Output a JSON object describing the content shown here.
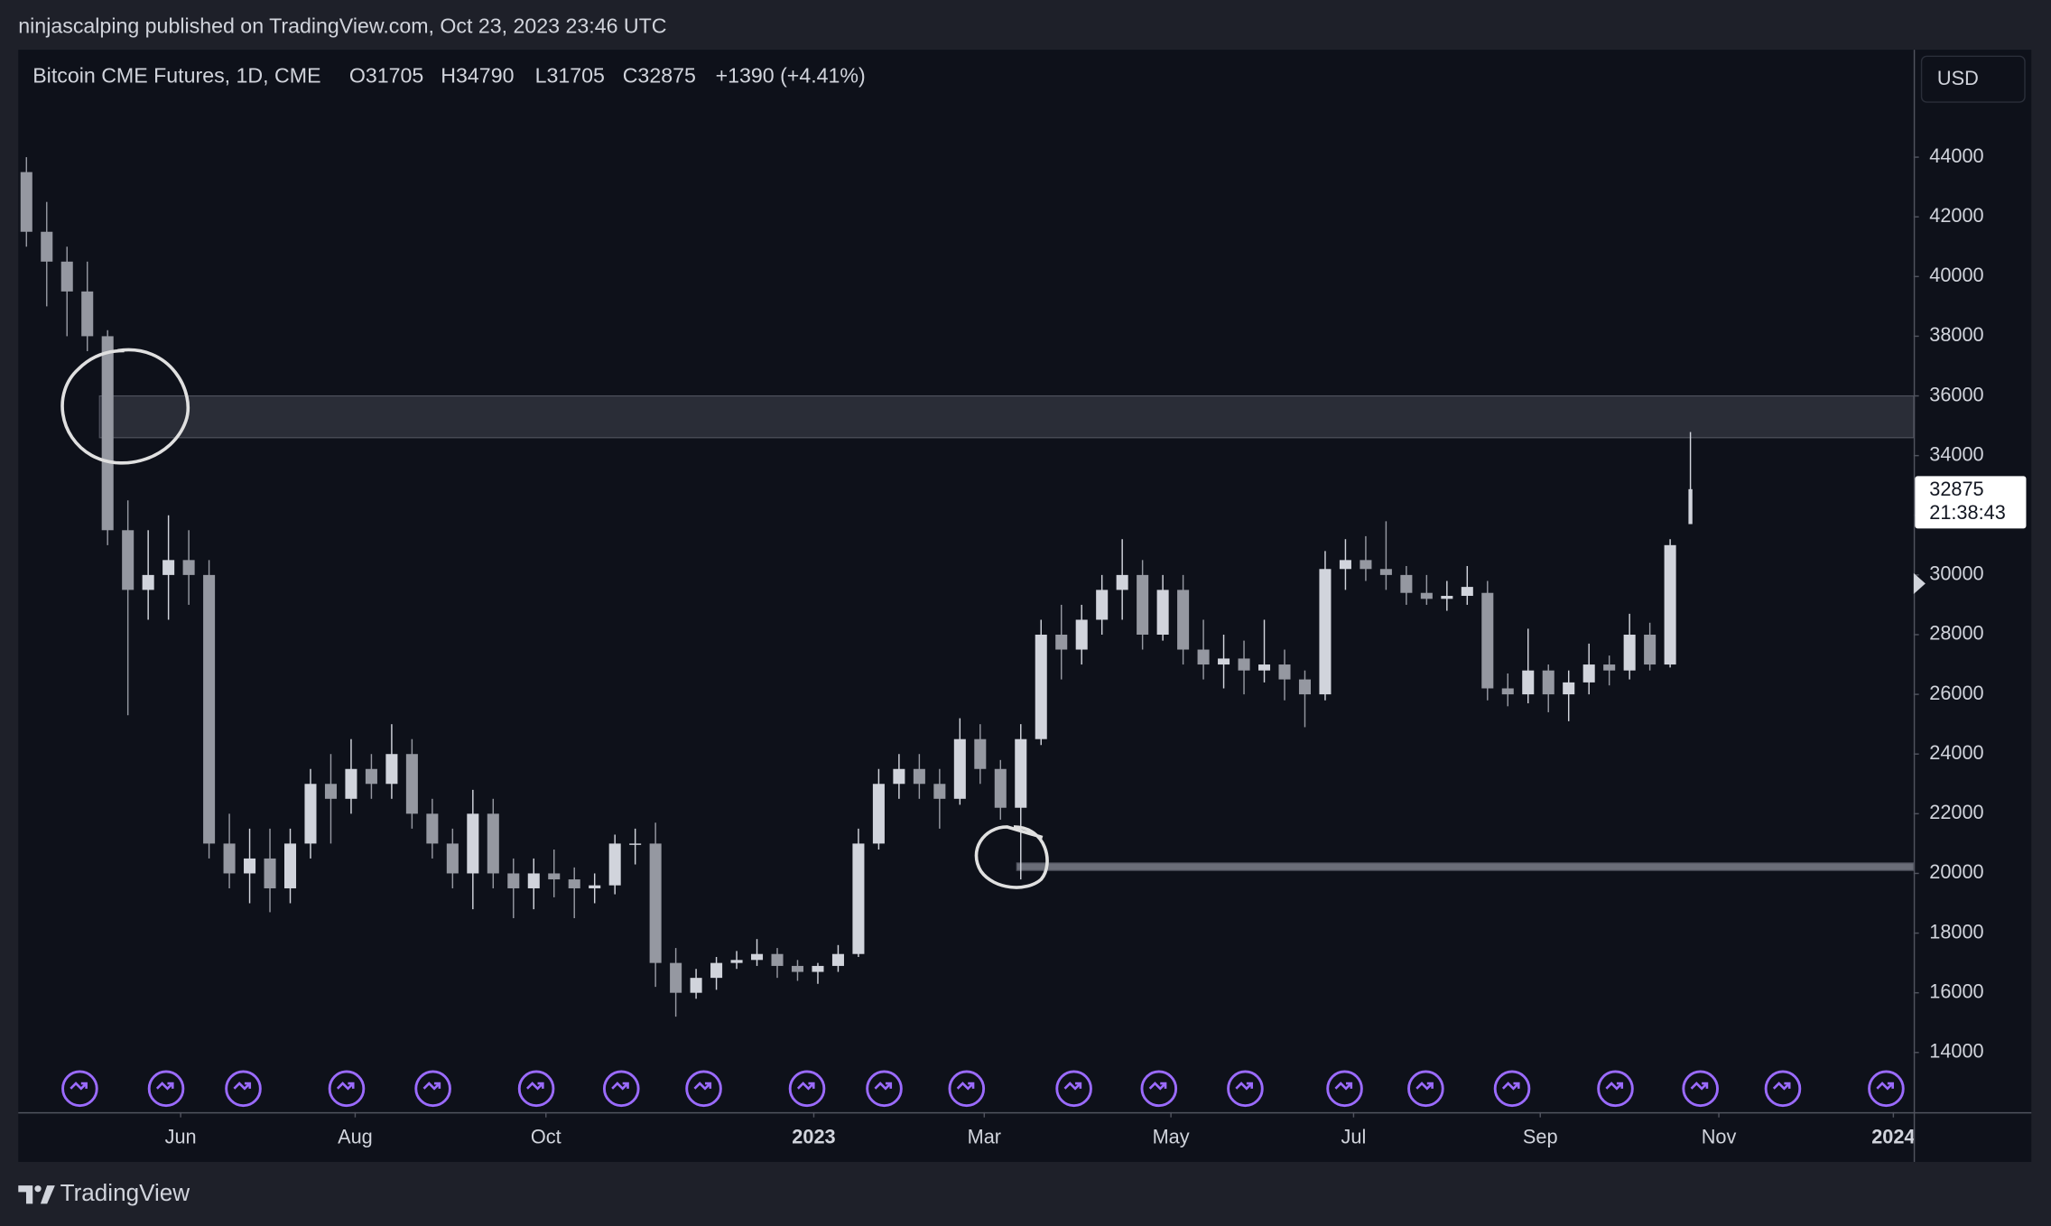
{
  "header": {
    "text": "ninjascalping published on TradingView.com, Oct 23, 2023 23:46 UTC"
  },
  "footer": {
    "brand": "TradingView"
  },
  "currency_button": "USD",
  "chart_data": {
    "type": "candlestick",
    "title": "Bitcoin CME Futures, 1D, CME",
    "ohlc": [
      "O31705",
      "H34790",
      "L31705",
      "C32875"
    ],
    "change": "+1390 (+4.41%)",
    "countdown": "21:38:43",
    "up_color": "#d1d4dc",
    "down_color": "#9598a1",
    "grid": false,
    "xlim": [
      0,
      467
    ],
    "xticks": [
      {
        "value": 40,
        "label": "Jun"
      },
      {
        "value": 83,
        "label": "Aug"
      },
      {
        "value": 130,
        "label": "Oct"
      },
      {
        "value": 196,
        "label": "2023"
      },
      {
        "value": 238,
        "label": "Mar"
      },
      {
        "value": 284,
        "label": "May"
      },
      {
        "value": 329,
        "label": "Jul"
      },
      {
        "value": 375,
        "label": "Sep"
      },
      {
        "value": 419,
        "label": "Nov"
      },
      {
        "value": 462,
        "label": "2024"
      }
    ],
    "ylim": [
      12000,
      47600
    ],
    "yticks": [
      14000,
      16000,
      18000,
      20000,
      22000,
      24000,
      26000,
      28000,
      30000,
      32000,
      34000,
      36000,
      38000,
      40000,
      42000,
      44000
    ],
    "zones": [
      {
        "y": [
          34600,
          36000
        ],
        "x_start": 20,
        "color": "#2a2d37"
      },
      {
        "y": [
          20100,
          20350
        ],
        "x_start": 246,
        "color": "#6a6d78"
      }
    ],
    "x": [
      2,
      7,
      12,
      17,
      22,
      27,
      32,
      37,
      42,
      47,
      52,
      57,
      62,
      67,
      72,
      77,
      82,
      87,
      92,
      97,
      102,
      107,
      112,
      117,
      122,
      127,
      132,
      137,
      142,
      147,
      152,
      157,
      162,
      167,
      172,
      177,
      182,
      187,
      192,
      197,
      202,
      207,
      212,
      217,
      222,
      227,
      232,
      237,
      242,
      247,
      252,
      257,
      262,
      267,
      272,
      277,
      282,
      287,
      292,
      297,
      302,
      307,
      312,
      317,
      322,
      327,
      332,
      337,
      342,
      347,
      352,
      357,
      362,
      367,
      372,
      377,
      382,
      387,
      392,
      397,
      402,
      407,
      412
    ],
    "open": [
      43500,
      41500,
      40500,
      39500,
      38000,
      31500,
      29500,
      30000,
      30500,
      30000,
      21000,
      20000,
      20500,
      19500,
      21000,
      23000,
      22500,
      23500,
      23000,
      24000,
      22000,
      21000,
      20000,
      22000,
      20000,
      19500,
      20000,
      19800,
      19500,
      19600,
      21000,
      21000,
      17000,
      16000,
      16500,
      17000,
      17100,
      17300,
      16900,
      16700,
      16900,
      17300,
      21000,
      23000,
      23500,
      23000,
      22500,
      24500,
      23500,
      22200,
      24500,
      28000,
      27500,
      28500,
      29500,
      30000,
      28000,
      29500,
      27500,
      27000,
      27200,
      26800,
      27000,
      26500,
      26000,
      30200,
      30500,
      30200,
      30000,
      29400,
      29200,
      29300,
      29400,
      26200,
      26000,
      26800,
      26000,
      26400,
      27000,
      26800,
      28000,
      27000,
      31705
    ],
    "high": [
      44000,
      42500,
      41000,
      40500,
      38200,
      32500,
      31500,
      32000,
      31500,
      30500,
      22000,
      21500,
      21500,
      21500,
      23500,
      24000,
      24500,
      24000,
      25000,
      24500,
      22500,
      21500,
      22800,
      22500,
      20500,
      20500,
      20800,
      20200,
      20000,
      21300,
      21500,
      21700,
      17500,
      16800,
      17200,
      17400,
      17800,
      17500,
      17100,
      17000,
      17600,
      21500,
      23500,
      24000,
      24000,
      23500,
      25200,
      25000,
      23800,
      25000,
      28500,
      29000,
      29000,
      30000,
      31200,
      30500,
      30000,
      30000,
      28500,
      28000,
      27800,
      28500,
      27500,
      26800,
      30800,
      31200,
      31300,
      31800,
      30300,
      30000,
      29800,
      30300,
      29800,
      26700,
      28200,
      27000,
      26800,
      27700,
      27300,
      28700,
      28400,
      31200,
      34790
    ],
    "low": [
      41000,
      39000,
      38000,
      37500,
      31000,
      25300,
      28500,
      28500,
      29000,
      20500,
      19500,
      19000,
      18700,
      19000,
      20500,
      21000,
      22000,
      22500,
      22500,
      21500,
      20500,
      19500,
      18800,
      19500,
      18500,
      18800,
      19200,
      18500,
      19000,
      19300,
      20300,
      16200,
      15200,
      15800,
      16100,
      16800,
      16900,
      16500,
      16400,
      16300,
      16700,
      17200,
      20800,
      22500,
      22500,
      21500,
      22300,
      23000,
      21800,
      19800,
      24300,
      26500,
      27000,
      28000,
      28500,
      27500,
      27800,
      27000,
      26500,
      26200,
      26000,
      26400,
      25800,
      24900,
      25800,
      29500,
      29800,
      29500,
      29000,
      29000,
      28800,
      29000,
      25800,
      25600,
      25700,
      25400,
      25100,
      26000,
      26300,
      26500,
      26800,
      26900,
      31705
    ],
    "close": [
      41500,
      40500,
      39500,
      38000,
      31500,
      29500,
      30000,
      30500,
      30000,
      21000,
      20000,
      20500,
      19500,
      21000,
      23000,
      22500,
      23500,
      23000,
      24000,
      22000,
      21000,
      20000,
      22000,
      20000,
      19500,
      20000,
      19800,
      19500,
      19600,
      21000,
      21000,
      17000,
      16000,
      16500,
      17000,
      17100,
      17300,
      16900,
      16700,
      16900,
      17300,
      21000,
      23000,
      23500,
      23000,
      22500,
      24500,
      23500,
      22200,
      24500,
      28000,
      27500,
      28500,
      29500,
      30000,
      28000,
      29500,
      27500,
      27000,
      27200,
      26800,
      27000,
      26500,
      26000,
      30200,
      30500,
      30200,
      30000,
      29400,
      29200,
      29300,
      29600,
      26200,
      26000,
      26800,
      26000,
      26400,
      27000,
      26800,
      28000,
      27000,
      31000,
      32875
    ]
  }
}
